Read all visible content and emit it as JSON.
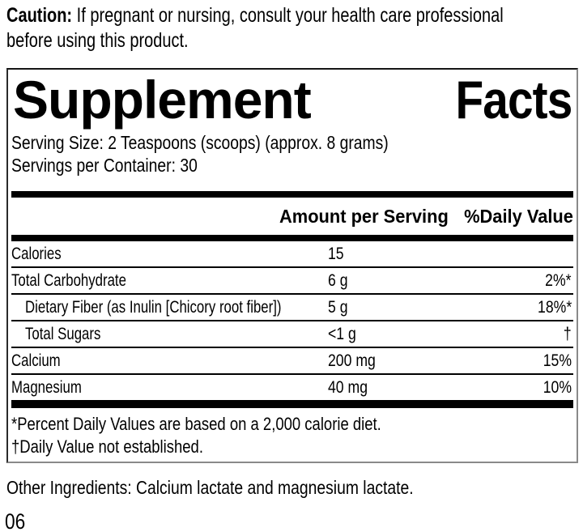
{
  "caution": {
    "label": "Caution:",
    "line1_rest": "If pregnant or nursing, consult your health care professional",
    "line2": "before using this product."
  },
  "panel": {
    "title_word1": "Supplement",
    "title_word2": "Facts",
    "serving_size": "Serving Size: 2 Teaspoons (scoops) (approx. 8 grams)",
    "servings_per_container": "Servings per Container: 30",
    "header": {
      "amount": "Amount per Serving",
      "daily_value": "%Daily Value"
    },
    "rows": [
      {
        "name": "Calories",
        "amount": "15",
        "dv": ""
      },
      {
        "name": "Total Carbohydrate",
        "amount": "6 g",
        "dv": "2%*"
      },
      {
        "name": "Dietary Fiber (as Inulin [Chicory root fiber])",
        "amount": "5 g",
        "dv": "18%*"
      },
      {
        "name": "Total Sugars",
        "amount": "<1 g",
        "dv": "†"
      },
      {
        "name": "Calcium",
        "amount": "200 mg",
        "dv": "15%"
      },
      {
        "name": "Magnesium",
        "amount": "40 mg",
        "dv": "10%"
      }
    ],
    "footnotes": [
      "*Percent Daily Values are based on a 2,000 calorie diet.",
      "†Daily Value not established."
    ]
  },
  "other_ingredients": "Other Ingredients: Calcium lactate and magnesium lactate.",
  "code": "06",
  "colors": {
    "text": "#000000",
    "background": "#ffffff",
    "rule": "#000000"
  }
}
